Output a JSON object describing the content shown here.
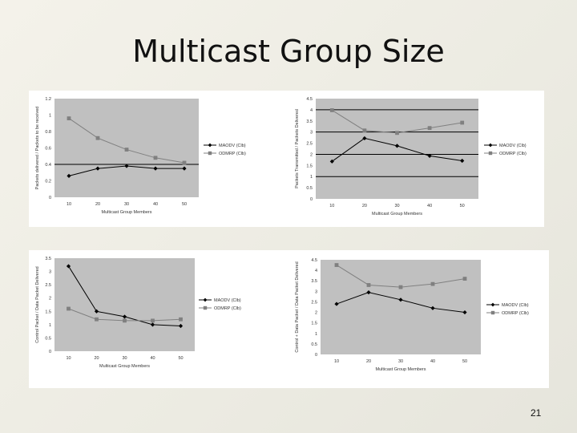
{
  "slide": {
    "title": "Multicast Group Size",
    "page_number": "21"
  },
  "colors": {
    "plot_bg": "#c0c0c0",
    "grid": "#000000",
    "series_maodv": "#000000",
    "series_odmrp": "#808080"
  },
  "chart_data": [
    {
      "type": "line",
      "x": [
        10,
        20,
        30,
        40,
        50
      ],
      "xlabel": "Multicast Group Members",
      "ylabel": "Packets delivered / Packets to be received",
      "ylim": [
        0,
        1.2
      ],
      "yticks": [
        "0",
        "0.2",
        "0.4",
        "0.6",
        "0.8",
        "1",
        "1.2"
      ],
      "gridlines": [
        0.4
      ],
      "legend_position": "right",
      "series": [
        {
          "name": "MAODV (Clb)",
          "marker": "diamond",
          "values": [
            0.26,
            0.35,
            0.38,
            0.35,
            0.35
          ]
        },
        {
          "name": "ODMRP (Clb)",
          "marker": "square",
          "values": [
            0.96,
            0.72,
            0.58,
            0.48,
            0.42
          ]
        }
      ]
    },
    {
      "type": "line",
      "x": [
        10,
        20,
        30,
        40,
        50
      ],
      "xlabel": "Multicast Group Members",
      "ylabel": "Packets Transmitted / Packets Delivered",
      "ylim": [
        0,
        4.5
      ],
      "yticks": [
        "0",
        "0.5",
        "1",
        "1.5",
        "2",
        "2.5",
        "3",
        "3.5",
        "4",
        "4.5"
      ],
      "gridlines": [
        1,
        2,
        3,
        4
      ],
      "legend_position": "right",
      "series": [
        {
          "name": "MAODV (Clb)",
          "marker": "diamond",
          "values": [
            1.68,
            2.72,
            2.38,
            1.93,
            1.71
          ]
        },
        {
          "name": "ODMRP (Clb)",
          "marker": "square",
          "values": [
            3.98,
            3.07,
            2.96,
            3.18,
            3.42
          ]
        }
      ]
    },
    {
      "type": "line",
      "x": [
        10,
        20,
        30,
        40,
        50
      ],
      "xlabel": "Multicast Group Members",
      "ylabel": "Control Packet / Data Packet Delivered",
      "ylim": [
        0,
        3.5
      ],
      "yticks": [
        "0",
        "0.5",
        "1",
        "1.5",
        "2",
        "2.5",
        "3",
        "3.5"
      ],
      "gridlines": [],
      "legend_position": "right",
      "series": [
        {
          "name": "MAODV (Clb)",
          "marker": "diamond",
          "values": [
            3.2,
            1.5,
            1.3,
            1.0,
            0.95
          ]
        },
        {
          "name": "ODMRP (Clb)",
          "marker": "square",
          "values": [
            1.6,
            1.2,
            1.15,
            1.15,
            1.2
          ]
        }
      ]
    },
    {
      "type": "line",
      "x": [
        10,
        20,
        30,
        40,
        50
      ],
      "xlabel": "Multicast Group Members",
      "ylabel": "Control + Data Packet / Data Packet Delivered",
      "ylim": [
        0,
        4.5
      ],
      "yticks": [
        "0",
        "0.5",
        "1",
        "1.5",
        "2",
        "2.5",
        "3",
        "3.5",
        "4",
        "4.5"
      ],
      "gridlines": [],
      "legend_position": "right",
      "series": [
        {
          "name": "MAODV (Clb)",
          "marker": "diamond",
          "values": [
            2.4,
            2.95,
            2.6,
            2.2,
            2.0
          ]
        },
        {
          "name": "ODMRP (Clb)",
          "marker": "square",
          "values": [
            4.25,
            3.3,
            3.2,
            3.35,
            3.6
          ]
        }
      ]
    }
  ]
}
